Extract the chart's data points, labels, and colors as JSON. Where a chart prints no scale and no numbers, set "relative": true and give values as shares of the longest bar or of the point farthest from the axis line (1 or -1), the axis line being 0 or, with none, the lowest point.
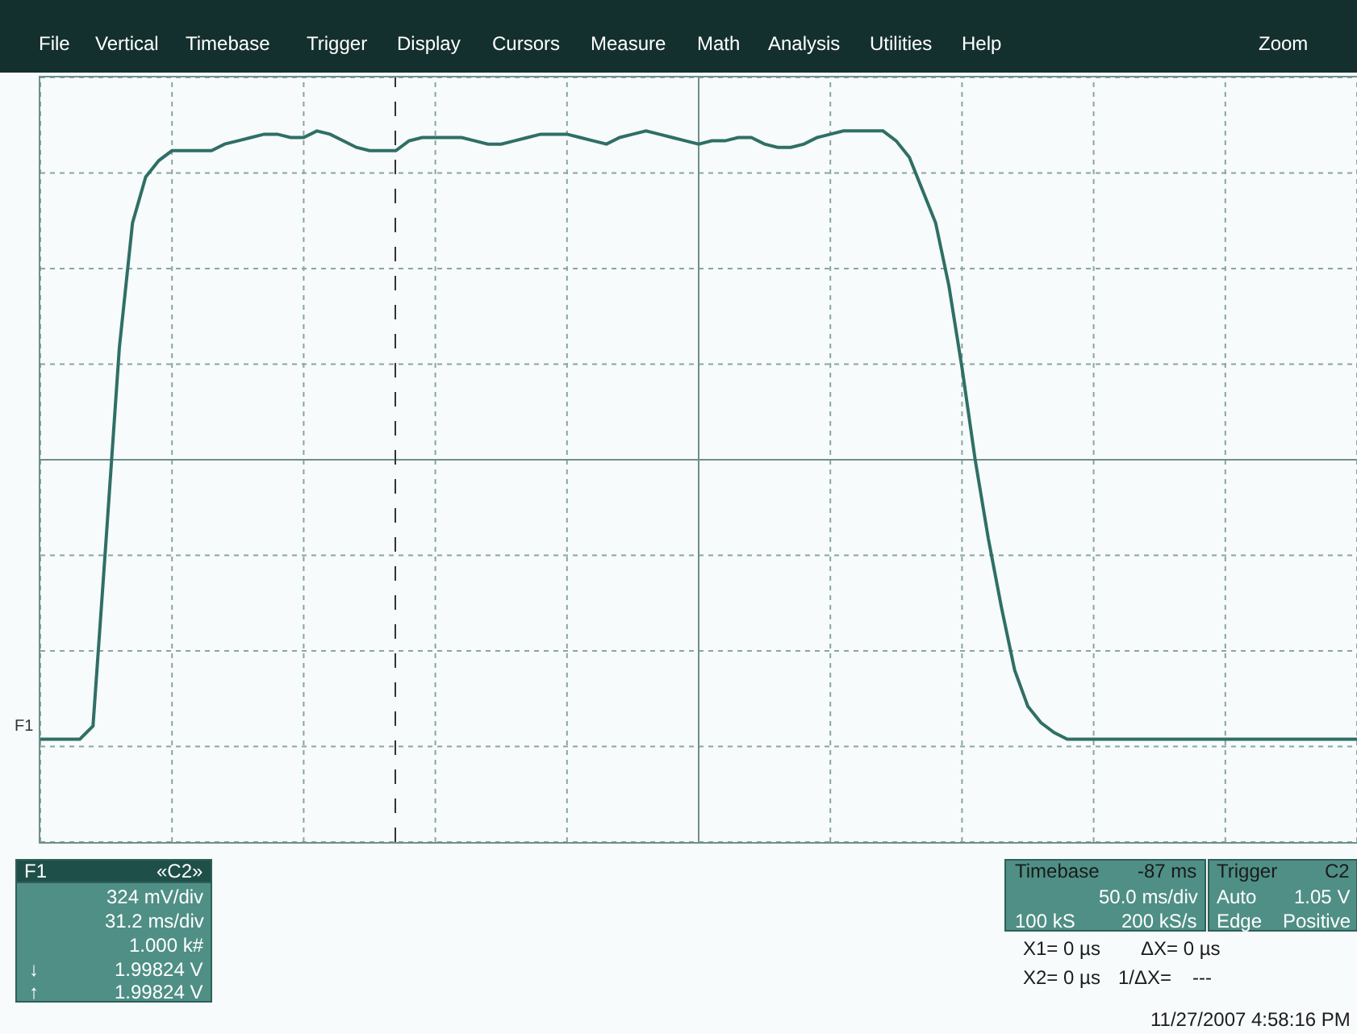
{
  "chart_data": {
    "type": "line",
    "relative": true,
    "categories": [
      null,
      null,
      null,
      null,
      null,
      null,
      null,
      null,
      null,
      null,
      null,
      null,
      null,
      null,
      null,
      null,
      null,
      null,
      null,
      null,
      null,
      null,
      null,
      null,
      null,
      null,
      null,
      null,
      null,
      null,
      null,
      null,
      null,
      null,
      null,
      null,
      null,
      null,
      null,
      null,
      null,
      null,
      null,
      null,
      null,
      null,
      null,
      null,
      null,
      null,
      null,
      null,
      null,
      null,
      null,
      null,
      null,
      null,
      null,
      null,
      null,
      null,
      null,
      null,
      null,
      null,
      null,
      null,
      null,
      null,
      null,
      null,
      null,
      null,
      null,
      null,
      null,
      null,
      null,
      null,
      null,
      null,
      null,
      null,
      null,
      null,
      null,
      null,
      null,
      null,
      null,
      null,
      null,
      null,
      null,
      null,
      null,
      null,
      null,
      null,
      null
    ],
    "series": [
      {
        "name": "F1",
        "color": "#2f6f66",
        "values": [
          -0.85,
          -0.85,
          -0.85,
          -0.85,
          -0.81,
          -0.24,
          0.34,
          0.72,
          0.86,
          0.91,
          0.94,
          0.94,
          0.94,
          0.94,
          0.96,
          0.97,
          0.98,
          0.99,
          0.99,
          0.98,
          0.98,
          1,
          0.99,
          0.97,
          0.95,
          0.94,
          0.94,
          0.94,
          0.97,
          0.98,
          0.98,
          0.98,
          0.98,
          0.97,
          0.96,
          0.96,
          0.97,
          0.98,
          0.99,
          0.99,
          0.99,
          0.98,
          0.97,
          0.96,
          0.98,
          0.99,
          1,
          0.99,
          0.98,
          0.97,
          0.96,
          0.97,
          0.97,
          0.98,
          0.98,
          0.96,
          0.95,
          0.95,
          0.96,
          0.98,
          0.99,
          1,
          1,
          1,
          1,
          0.97,
          0.92,
          0.82,
          0.72,
          0.53,
          0.28,
          0,
          -0.24,
          -0.45,
          -0.64,
          -0.75,
          -0.8,
          -0.83,
          -0.85,
          -0.85,
          -0.85,
          -0.85,
          -0.85,
          -0.85,
          -0.85,
          -0.85,
          -0.85,
          -0.85,
          -0.85,
          -0.85,
          -0.85,
          -0.85,
          -0.85,
          -0.85,
          -0.85,
          -0.85,
          -0.85,
          -0.85,
          -0.85,
          -0.85,
          -0.85
        ]
      }
    ],
    "grid": true,
    "legend": false,
    "marker": "none",
    "line_style": "solid",
    "annotations": [
      "File",
      "Vertical",
      "Timebase",
      "Trigger",
      "Display",
      "Cursors",
      "Measure",
      "Math",
      "Analysis",
      "Utilities",
      "Help",
      "Zoom",
      "F1",
      "«C2»",
      "324 mV/div",
      "31.2 ms/div",
      "1.000 k#",
      "↓",
      "1.99824 V",
      "↑",
      "1.99824 V",
      "Timebase",
      "-87 ms",
      "50.0 ms/div",
      "100 kS",
      "200 kS/s",
      "Trigger",
      "C2",
      "Auto",
      "1.05 V",
      "Edge",
      "Positive",
      "X1= 0 µs",
      "ΔX= 0 µs",
      "X2= 0 µs",
      "1/ΔX=",
      "---",
      "11/27/2007 4:58:16 PM"
    ]
  }
}
